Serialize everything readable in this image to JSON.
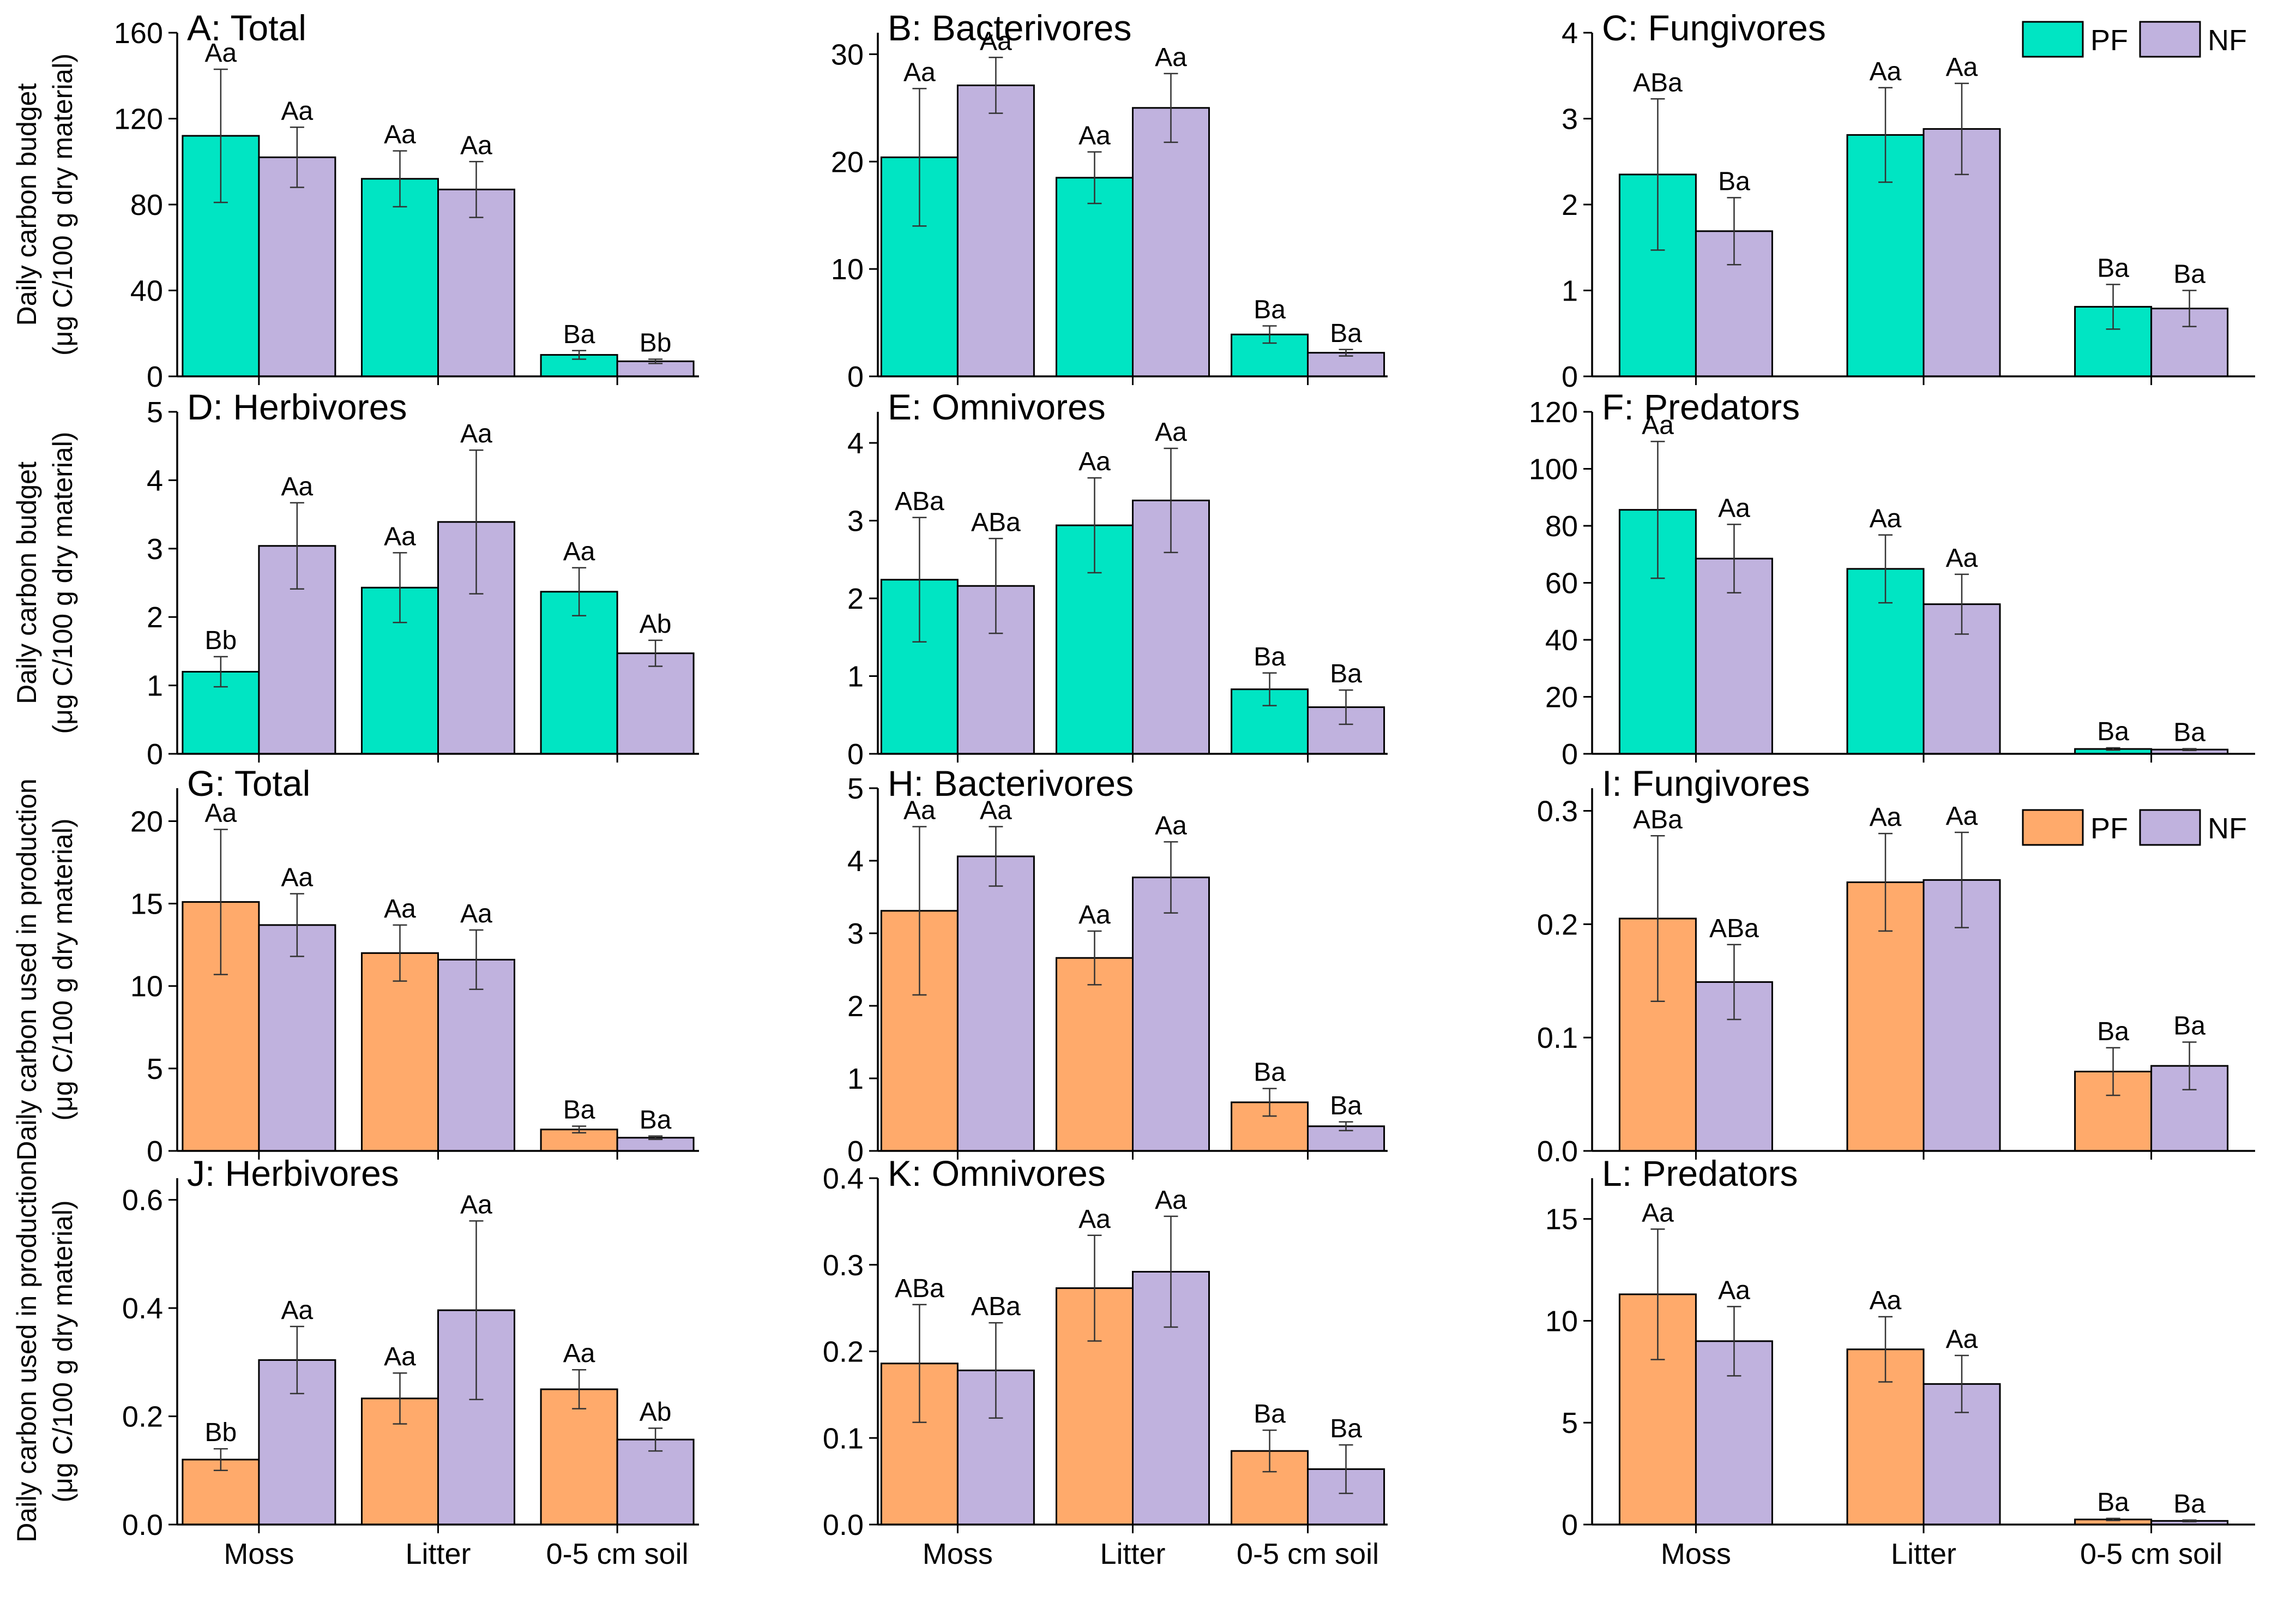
{
  "chart_data": {
    "type": "bar",
    "categories": [
      "Moss",
      "Litter",
      "0-5 cm soil"
    ],
    "y_axis_titles": [
      {
        "line1": "Daily carbon budget",
        "line2": "(μg C/100 g dry material)"
      },
      {
        "line1": "Daily carbon budget",
        "line2": "(μg C/100 g dry material)"
      },
      {
        "line1": "Daily carbon used in production",
        "line2": "(μg C/100 g dry material)"
      },
      {
        "line1": "Daily carbon used in production",
        "line2": "(μg C/100 g dry material)"
      }
    ],
    "legends": [
      {
        "entries": [
          {
            "label": "PF",
            "color": "#00E5C3"
          },
          {
            "label": "NF",
            "color": "#C0B2DE"
          }
        ]
      },
      {
        "entries": [
          {
            "label": "PF",
            "color": "#FFAA6B"
          },
          {
            "label": "NF",
            "color": "#C0B2DE"
          }
        ]
      }
    ],
    "panels": [
      {
        "title": "A: Total",
        "ylim": [
          0,
          160
        ],
        "ticks": [
          "0",
          "40",
          "80",
          "120",
          "160"
        ],
        "series": [
          {
            "name": "PF",
            "color": "#00E5C3",
            "values": [
              112,
              92,
              10
            ],
            "errors": [
              31,
              13,
              2
            ],
            "labels": [
              "Aa",
              "Aa",
              "Ba"
            ]
          },
          {
            "name": "NF",
            "color": "#C0B2DE",
            "values": [
              102,
              87,
              7
            ],
            "errors": [
              14,
              13,
              1
            ],
            "labels": [
              "Aa",
              "Aa",
              "Bb"
            ]
          }
        ]
      },
      {
        "title": "B: Bacterivores",
        "ylim": [
          0,
          32
        ],
        "ticks": [
          "0",
          "10",
          "20",
          "30"
        ],
        "series": [
          {
            "name": "PF",
            "color": "#00E5C3",
            "values": [
              20.4,
              18.5,
              3.9
            ],
            "errors": [
              6.4,
              2.4,
              0.8
            ],
            "labels": [
              "Aa",
              "Aa",
              "Ba"
            ]
          },
          {
            "name": "NF",
            "color": "#C0B2DE",
            "values": [
              27.1,
              25.0,
              2.2
            ],
            "errors": [
              2.6,
              3.2,
              0.3
            ],
            "labels": [
              "Aa",
              "Aa",
              "Ba"
            ]
          }
        ]
      },
      {
        "title": "C: Fungivores",
        "ylim": [
          0,
          4
        ],
        "ticks": [
          "0",
          "1",
          "2",
          "3",
          "4"
        ],
        "series": [
          {
            "name": "PF",
            "color": "#00E5C3",
            "values": [
              2.35,
              2.81,
              0.81
            ],
            "errors": [
              0.88,
              0.55,
              0.26
            ],
            "labels": [
              "ABa",
              "Aa",
              "Ba"
            ]
          },
          {
            "name": "NF",
            "color": "#C0B2DE",
            "values": [
              1.69,
              2.88,
              0.79
            ],
            "errors": [
              0.39,
              0.53,
              0.21
            ],
            "labels": [
              "Ba",
              "Aa",
              "Ba"
            ]
          }
        ]
      },
      {
        "title": "D: Herbivores",
        "ylim": [
          0,
          5
        ],
        "ticks": [
          "0",
          "1",
          "2",
          "3",
          "4",
          "5"
        ],
        "series": [
          {
            "name": "PF",
            "color": "#00E5C3",
            "values": [
              1.2,
              2.43,
              2.37
            ],
            "errors": [
              0.22,
              0.51,
              0.35
            ],
            "labels": [
              "Bb",
              "Aa",
              "Aa"
            ]
          },
          {
            "name": "NF",
            "color": "#C0B2DE",
            "values": [
              3.04,
              3.39,
              1.47
            ],
            "errors": [
              0.63,
              1.05,
              0.19
            ],
            "labels": [
              "Aa",
              "Aa",
              "Ab"
            ]
          }
        ]
      },
      {
        "title": "E: Omnivores",
        "ylim": [
          0,
          4.4
        ],
        "ticks": [
          "0",
          "1",
          "2",
          "3",
          "4"
        ],
        "series": [
          {
            "name": "PF",
            "color": "#00E5C3",
            "values": [
              2.24,
              2.94,
              0.83
            ],
            "errors": [
              0.8,
              0.61,
              0.21
            ],
            "labels": [
              "ABa",
              "Aa",
              "Ba"
            ]
          },
          {
            "name": "NF",
            "color": "#C0B2DE",
            "values": [
              2.16,
              3.26,
              0.6
            ],
            "errors": [
              0.61,
              0.67,
              0.22
            ],
            "labels": [
              "ABa",
              "Aa",
              "Ba"
            ]
          }
        ]
      },
      {
        "title": "F: Predators",
        "ylim": [
          0,
          120
        ],
        "ticks": [
          "0",
          "20",
          "40",
          "60",
          "80",
          "100",
          "120"
        ],
        "series": [
          {
            "name": "PF",
            "color": "#00E5C3",
            "values": [
              85.6,
              64.9,
              1.7
            ],
            "errors": [
              24.0,
              11.9,
              0.4
            ],
            "labels": [
              "Aa",
              "Aa",
              "Ba"
            ]
          },
          {
            "name": "NF",
            "color": "#C0B2DE",
            "values": [
              68.5,
              52.5,
              1.5
            ],
            "errors": [
              12.0,
              10.5,
              0.3
            ],
            "labels": [
              "Aa",
              "Aa",
              "Ba"
            ]
          }
        ]
      },
      {
        "title": "G: Total",
        "ylim": [
          0,
          22
        ],
        "ticks": [
          "0",
          "5",
          "10",
          "15",
          "20"
        ],
        "series": [
          {
            "name": "PF",
            "color": "#FFAA6B",
            "values": [
              15.1,
              12.0,
              1.3
            ],
            "errors": [
              4.4,
              1.7,
              0.2
            ],
            "labels": [
              "Aa",
              "Aa",
              "Ba"
            ]
          },
          {
            "name": "NF",
            "color": "#C0B2DE",
            "values": [
              13.7,
              11.6,
              0.8
            ],
            "errors": [
              1.9,
              1.8,
              0.1
            ],
            "labels": [
              "Aa",
              "Aa",
              "Ba"
            ]
          }
        ]
      },
      {
        "title": "H: Bacterivores",
        "ylim": [
          0,
          5
        ],
        "ticks": [
          "0",
          "1",
          "2",
          "3",
          "4",
          "5"
        ],
        "series": [
          {
            "name": "PF",
            "color": "#FFAA6B",
            "values": [
              3.31,
              2.66,
              0.67
            ],
            "errors": [
              1.16,
              0.37,
              0.19
            ],
            "labels": [
              "Aa",
              "Aa",
              "Ba"
            ]
          },
          {
            "name": "NF",
            "color": "#C0B2DE",
            "values": [
              4.06,
              3.77,
              0.34
            ],
            "errors": [
              0.41,
              0.49,
              0.06
            ],
            "labels": [
              "Aa",
              "Aa",
              "Ba"
            ]
          }
        ]
      },
      {
        "title": "I: Fungivores",
        "ylim": [
          0,
          0.32
        ],
        "ticks": [
          "0.0",
          "0.1",
          "0.2",
          "0.3"
        ],
        "series": [
          {
            "name": "PF",
            "color": "#FFAA6B",
            "values": [
              0.205,
              0.237,
              0.07
            ],
            "errors": [
              0.073,
              0.043,
              0.021
            ],
            "labels": [
              "ABa",
              "Aa",
              "Ba"
            ]
          },
          {
            "name": "NF",
            "color": "#C0B2DE",
            "values": [
              0.149,
              0.239,
              0.075
            ],
            "errors": [
              0.033,
              0.042,
              0.021
            ],
            "labels": [
              "ABa",
              "Aa",
              "Ba"
            ]
          }
        ]
      },
      {
        "title": "J: Herbivores",
        "ylim": [
          0,
          0.64
        ],
        "ticks": [
          "0.0",
          "0.2",
          "0.4",
          "0.6"
        ],
        "series": [
          {
            "name": "PF",
            "color": "#FFAA6B",
            "values": [
              0.12,
              0.233,
              0.25
            ],
            "errors": [
              0.02,
              0.047,
              0.036
            ],
            "labels": [
              "Bb",
              "Aa",
              "Aa"
            ]
          },
          {
            "name": "NF",
            "color": "#C0B2DE",
            "values": [
              0.304,
              0.396,
              0.157
            ],
            "errors": [
              0.062,
              0.165,
              0.021
            ],
            "labels": [
              "Aa",
              "Aa",
              "Ab"
            ]
          }
        ]
      },
      {
        "title": "K: Omnivores",
        "ylim": [
          0,
          0.4
        ],
        "ticks": [
          "0.0",
          "0.1",
          "0.2",
          "0.3",
          "0.4"
        ],
        "series": [
          {
            "name": "PF",
            "color": "#FFAA6B",
            "values": [
              0.186,
              0.273,
              0.085
            ],
            "errors": [
              0.068,
              0.061,
              0.024
            ],
            "labels": [
              "ABa",
              "Aa",
              "Ba"
            ]
          },
          {
            "name": "NF",
            "color": "#C0B2DE",
            "values": [
              0.178,
              0.292,
              0.064
            ],
            "errors": [
              0.055,
              0.064,
              0.028
            ],
            "labels": [
              "ABa",
              "Aa",
              "Ba"
            ]
          }
        ]
      },
      {
        "title": "L: Predators",
        "ylim": [
          0,
          17
        ],
        "ticks": [
          "0",
          "5",
          "10",
          "15"
        ],
        "series": [
          {
            "name": "PF",
            "color": "#FFAA6B",
            "values": [
              11.3,
              8.6,
              0.25
            ],
            "errors": [
              3.2,
              1.6,
              0.05
            ],
            "labels": [
              "Aa",
              "Aa",
              "Ba"
            ]
          },
          {
            "name": "NF",
            "color": "#C0B2DE",
            "values": [
              9.0,
              6.9,
              0.18
            ],
            "errors": [
              1.7,
              1.4,
              0.04
            ],
            "labels": [
              "Aa",
              "Aa",
              "Ba"
            ]
          }
        ]
      }
    ]
  }
}
